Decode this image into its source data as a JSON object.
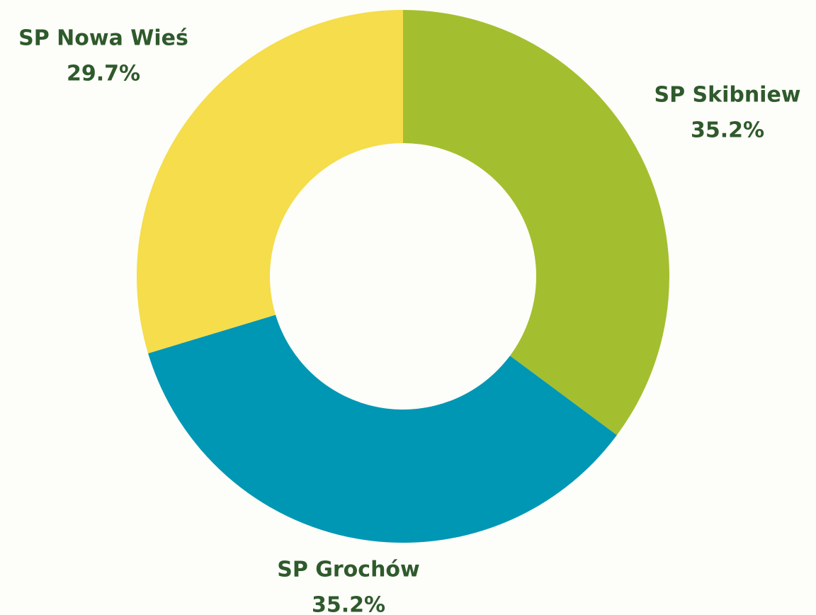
{
  "chart_data": {
    "type": "donut",
    "categories": [
      "SP Skibniew",
      "SP Grochów",
      "SP Nowa Wieś"
    ],
    "values": [
      35.2,
      35.2,
      29.7
    ],
    "value_labels": [
      "35.2%",
      "35.2%",
      "29.7%"
    ],
    "colors": [
      "#a3bf2f",
      "#0097b5",
      "#f5dd4b"
    ]
  }
}
